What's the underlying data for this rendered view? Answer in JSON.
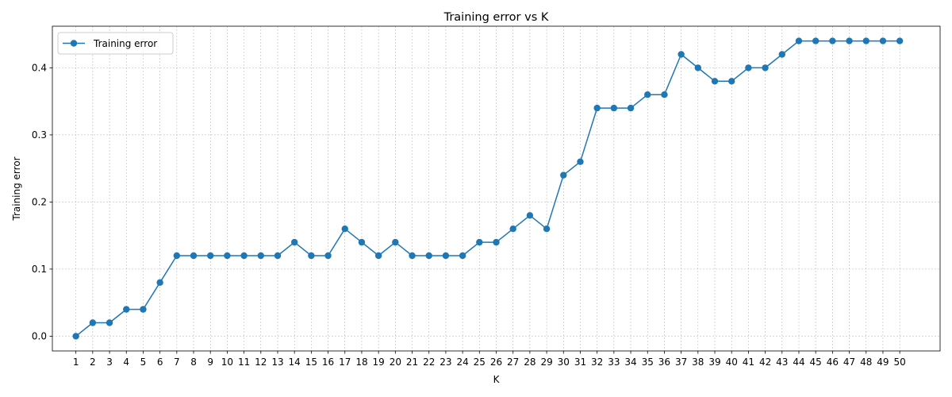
{
  "chart_data": {
    "type": "line",
    "title": "Training error vs K",
    "xlabel": "K",
    "ylabel": "Training error",
    "x": [
      1,
      2,
      3,
      4,
      5,
      6,
      7,
      8,
      9,
      10,
      11,
      12,
      13,
      14,
      15,
      16,
      17,
      18,
      19,
      20,
      21,
      22,
      23,
      24,
      25,
      26,
      27,
      28,
      29,
      30,
      31,
      32,
      33,
      34,
      35,
      36,
      37,
      38,
      39,
      40,
      41,
      42,
      43,
      44,
      45,
      46,
      47,
      48,
      49,
      50
    ],
    "series": [
      {
        "name": "Training error",
        "color": "#1f77b4",
        "marker": "circle",
        "values": [
          0.0,
          0.02,
          0.02,
          0.04,
          0.04,
          0.08,
          0.12,
          0.12,
          0.12,
          0.12,
          0.12,
          0.12,
          0.12,
          0.14,
          0.12,
          0.12,
          0.16,
          0.14,
          0.12,
          0.14,
          0.12,
          0.12,
          0.12,
          0.12,
          0.14,
          0.14,
          0.16,
          0.18,
          0.16,
          0.24,
          0.26,
          0.34,
          0.34,
          0.34,
          0.36,
          0.36,
          0.42,
          0.4,
          0.38,
          0.38,
          0.4,
          0.4,
          0.42,
          0.44,
          0.44,
          0.44,
          0.44,
          0.44,
          0.44,
          0.44
        ]
      }
    ],
    "xticks": [
      "1",
      "2",
      "3",
      "4",
      "5",
      "6",
      "7",
      "8",
      "9",
      "10",
      "11",
      "12",
      "13",
      "14",
      "15",
      "16",
      "17",
      "18",
      "19",
      "20",
      "21",
      "22",
      "23",
      "24",
      "25",
      "26",
      "27",
      "28",
      "29",
      "30",
      "31",
      "32",
      "33",
      "34",
      "35",
      "36",
      "37",
      "38",
      "39",
      "40",
      "41",
      "42",
      "43",
      "44",
      "45",
      "46",
      "47",
      "48",
      "49",
      "50"
    ],
    "yticks": [
      0.0,
      0.1,
      0.2,
      0.3,
      0.4
    ],
    "ytick_labels": [
      "0.0",
      "0.1",
      "0.2",
      "0.3",
      "0.4"
    ],
    "xlim": [
      -0.4,
      52.4
    ],
    "ylim": [
      -0.022,
      0.462
    ],
    "grid": true,
    "legend_position": "top-left"
  }
}
